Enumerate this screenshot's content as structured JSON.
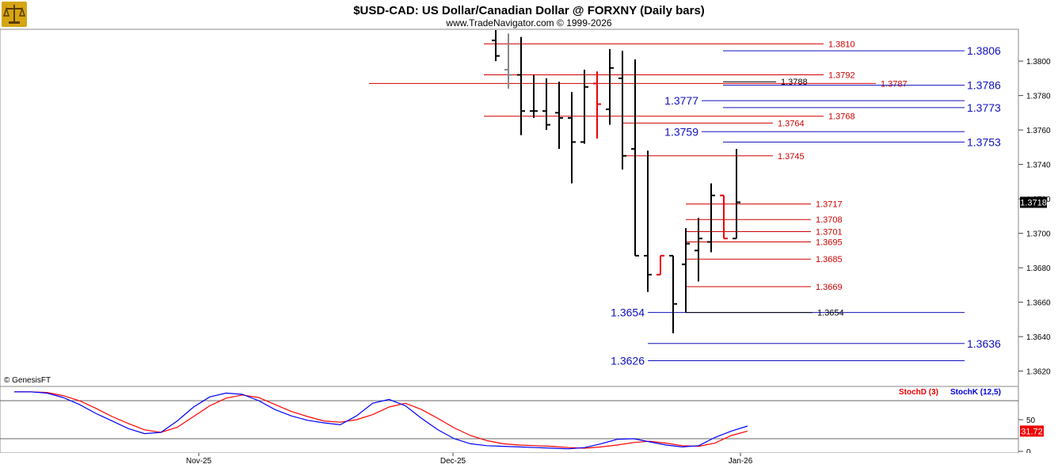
{
  "title": "$USD-CAD:  US Dollar/Canadian Dollar @ FORXNY  (Daily bars)",
  "subtitle": "www.TradeNavigator.com © 1999-2026",
  "watermark": "© GenesisFT",
  "logo_icon": "scales-of-justice-icon",
  "colors": {
    "bar_up": "#000000",
    "bar_down": "#e8000b",
    "red_level": "#d00000",
    "blue_level": "#1010c0",
    "stoch_k": "#0000ff",
    "stoch_d": "#ff0000",
    "price_tag_bg": "#000000",
    "stoch_tag_bg": "#ee0000"
  },
  "chart_data": [
    {
      "type": "ohlc",
      "title": "$USD-CAD:  US Dollar/Canadian Dollar @ FORXNY  (Daily bars)",
      "ylim": [
        1.3612,
        1.3818
      ],
      "y_ticks": [
        "1.3800",
        "1.3780",
        "1.3760",
        "1.3740",
        "1.3720",
        "1.3700",
        "1.3680",
        "1.3660",
        "1.3640",
        "1.3620"
      ],
      "x_ticks": [
        "Nov-25",
        "Dec-25",
        "Jan-26"
      ],
      "last_price_label": "1.3718",
      "bars": [
        {
          "o": 1.3812,
          "h": 1.3818,
          "l": 1.38,
          "c": 1.3803,
          "color": "black"
        },
        {
          "o": 1.3795,
          "h": 1.3816,
          "l": 1.3784,
          "c": 1.3792,
          "color": "gray"
        },
        {
          "o": 1.3792,
          "h": 1.3814,
          "l": 1.3757,
          "c": 1.3771,
          "color": "black"
        },
        {
          "o": 1.3771,
          "h": 1.3792,
          "l": 1.3767,
          "c": 1.3771,
          "color": "black"
        },
        {
          "o": 1.3771,
          "h": 1.379,
          "l": 1.376,
          "c": 1.3763,
          "color": "black"
        },
        {
          "o": 1.377,
          "h": 1.3788,
          "l": 1.3749,
          "c": 1.3767,
          "color": "black"
        },
        {
          "o": 1.3767,
          "h": 1.3782,
          "l": 1.3729,
          "c": 1.3753,
          "color": "black"
        },
        {
          "o": 1.3753,
          "h": 1.3795,
          "l": 1.3752,
          "c": 1.3785,
          "color": "black"
        },
        {
          "o": 1.3787,
          "h": 1.3794,
          "l": 1.3755,
          "c": 1.3775,
          "color": "red"
        },
        {
          "o": 1.3772,
          "h": 1.3807,
          "l": 1.3763,
          "c": 1.3796,
          "color": "black"
        },
        {
          "o": 1.379,
          "h": 1.3806,
          "l": 1.3737,
          "c": 1.3745,
          "color": "black"
        },
        {
          "o": 1.3749,
          "h": 1.3801,
          "l": 1.3687,
          "c": 1.3687,
          "color": "black"
        },
        {
          "o": 1.3687,
          "h": 1.3748,
          "l": 1.3666,
          "c": 1.3676,
          "color": "black"
        },
        {
          "o": 1.3676,
          "h": 1.3687,
          "l": 1.3676,
          "c": 1.3687,
          "color": "red"
        },
        {
          "o": 1.3687,
          "h": 1.3687,
          "l": 1.3642,
          "c": 1.3659,
          "color": "black"
        },
        {
          "o": 1.3682,
          "h": 1.3703,
          "l": 1.3654,
          "c": 1.3694,
          "color": "black"
        },
        {
          "o": 1.369,
          "h": 1.3709,
          "l": 1.3672,
          "c": 1.3697,
          "color": "black"
        },
        {
          "o": 1.3695,
          "h": 1.3729,
          "l": 1.3689,
          "c": 1.3722,
          "color": "black"
        },
        {
          "o": 1.3722,
          "h": 1.3722,
          "l": 1.3697,
          "c": 1.3697,
          "color": "red"
        },
        {
          "o": 1.3697,
          "h": 1.3749,
          "l": 1.3697,
          "c": 1.3718,
          "color": "black"
        }
      ],
      "levels": [
        {
          "value": 1.381,
          "label": "1.3810",
          "color": "red",
          "label_side": "right"
        },
        {
          "value": 1.3806,
          "label": "1.3806",
          "color": "blue",
          "label_side": "right"
        },
        {
          "value": 1.3792,
          "label": "1.3792",
          "color": "red",
          "label_side": "right"
        },
        {
          "value": 1.3788,
          "label": "1.3788",
          "color": "black",
          "label_side": "right"
        },
        {
          "value": 1.3787,
          "label": "1.3787",
          "color": "red",
          "label_side": "right"
        },
        {
          "value": 1.3786,
          "label": "1.3786",
          "color": "blue",
          "label_side": "right"
        },
        {
          "value": 1.3777,
          "label": "1.3777",
          "color": "blue",
          "label_side": "left"
        },
        {
          "value": 1.3773,
          "label": "1.3773",
          "color": "blue",
          "label_side": "right"
        },
        {
          "value": 1.3768,
          "label": "1.3768",
          "color": "red",
          "label_side": "right"
        },
        {
          "value": 1.3764,
          "label": "1.3764",
          "color": "red",
          "label_side": "right"
        },
        {
          "value": 1.3759,
          "label": "1.3759",
          "color": "blue",
          "label_side": "left"
        },
        {
          "value": 1.3753,
          "label": "1.3753",
          "color": "blue",
          "label_side": "right"
        },
        {
          "value": 1.3745,
          "label": "1.3745",
          "color": "red",
          "label_side": "right"
        },
        {
          "value": 1.3717,
          "label": "1.3717",
          "color": "red",
          "label_side": "right"
        },
        {
          "value": 1.3708,
          "label": "1.3708",
          "color": "red",
          "label_side": "right"
        },
        {
          "value": 1.3701,
          "label": "1.3701",
          "color": "red",
          "label_side": "right"
        },
        {
          "value": 1.3695,
          "label": "1.3695",
          "color": "red",
          "label_side": "right"
        },
        {
          "value": 1.3685,
          "label": "1.3685",
          "color": "red",
          "label_side": "right"
        },
        {
          "value": 1.3669,
          "label": "1.3669",
          "color": "red",
          "label_side": "right"
        },
        {
          "value": 1.3654,
          "label": "1.3654",
          "color": "blue",
          "label_side": "left"
        },
        {
          "value": 1.3654,
          "label": "1.3654",
          "color": "black",
          "label_side": "right"
        },
        {
          "value": 1.3636,
          "label": "1.3636",
          "color": "blue",
          "label_side": "right"
        },
        {
          "value": 1.3626,
          "label": "1.3626",
          "color": "blue",
          "label_side": "left"
        }
      ]
    },
    {
      "type": "line",
      "ylim": [
        0,
        100
      ],
      "y_ticks": [
        "50",
        "0"
      ],
      "reference_lines": [
        80,
        20
      ],
      "last_value_label": "31.72",
      "series": [
        {
          "name": "StochD (3)",
          "color": "red",
          "values": [
            94,
            94,
            93,
            88,
            80,
            68,
            55,
            44,
            34,
            30,
            38,
            55,
            72,
            84,
            89,
            85,
            74,
            63,
            55,
            48,
            46,
            50,
            58,
            70,
            76,
            66,
            52,
            37,
            25,
            17,
            12,
            10,
            9,
            8,
            6,
            5,
            7,
            10,
            14,
            16,
            13,
            9,
            8,
            13,
            25,
            32
          ]
        },
        {
          "name": "StochK (12,5)",
          "color": "blue",
          "values": [
            94,
            94,
            92,
            85,
            74,
            60,
            48,
            36,
            28,
            30,
            48,
            70,
            86,
            92,
            90,
            80,
            66,
            56,
            49,
            45,
            42,
            56,
            76,
            82,
            72,
            52,
            34,
            20,
            12,
            9,
            8,
            7,
            6,
            5,
            4,
            6,
            12,
            19,
            20,
            15,
            10,
            7,
            9,
            22,
            32,
            40
          ]
        }
      ]
    }
  ]
}
